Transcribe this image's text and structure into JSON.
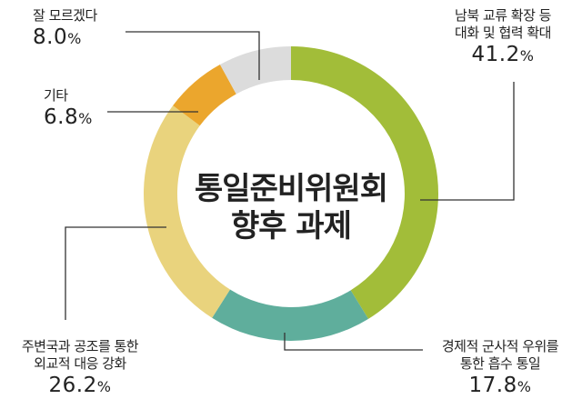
{
  "center_title": {
    "line1": "통일준비위원회",
    "line2": "향후 과제"
  },
  "chart_data": {
    "type": "pie",
    "subtype": "donut",
    "unit": "%",
    "slices": [
      {
        "label": "남북 교류 확장 등 대화 및 협력 확대",
        "line1": "남북 교류 확장 등",
        "line2": "대화 및 협력 확대",
        "value": 41.2,
        "color": "#a2bd39"
      },
      {
        "label": "경제적 군사적 우위를 통한 흡수 통일",
        "line1": "경제적 군사적 우위를",
        "line2": "통한 흡수 통일",
        "value": 17.8,
        "color": "#5fae9c"
      },
      {
        "label": "주변국과 공조를 통한 외교적 대응 강화",
        "line1": "주변국과 공조를 통한",
        "line2": "외교적 대응 강화",
        "value": 26.2,
        "color": "#e9d37d"
      },
      {
        "label": "기타",
        "line1": "기타",
        "line2": "",
        "value": 6.8,
        "color": "#eba62d"
      },
      {
        "label": "잘 모르겠다",
        "line1": "잘 모르겠다",
        "line2": "",
        "value": 8.0,
        "color": "#dcdcdc"
      }
    ]
  }
}
